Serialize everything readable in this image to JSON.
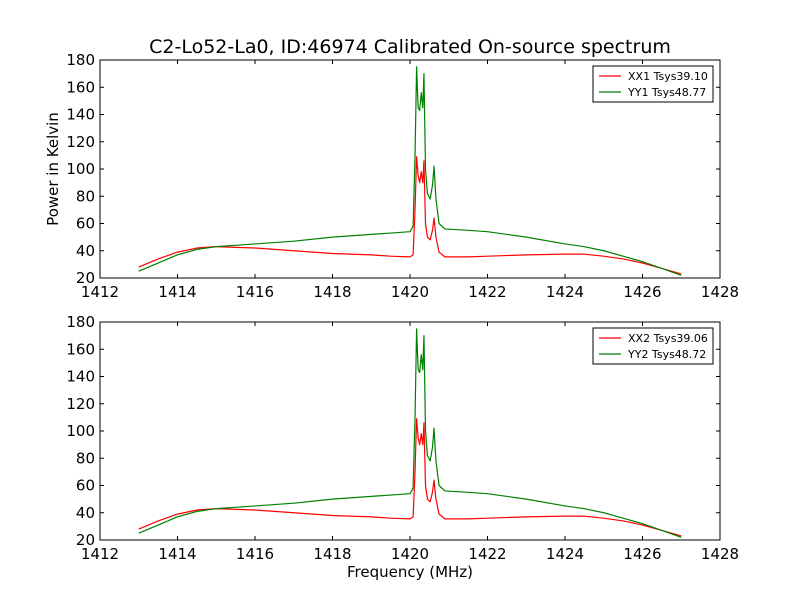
{
  "figure_title": "C2-Lo52-La0, ID:46974 Calibrated On-source spectrum",
  "chart_data": [
    {
      "type": "line",
      "title": "C2-Lo52-La0, ID:46974 Calibrated On-source spectrum",
      "xlabel": "",
      "ylabel": "Power in Kelvin",
      "xlim": [
        1412,
        1428
      ],
      "ylim": [
        20,
        180
      ],
      "xticks": [
        1412,
        1414,
        1416,
        1418,
        1420,
        1422,
        1424,
        1426,
        1428
      ],
      "yticks": [
        20,
        40,
        60,
        80,
        100,
        120,
        140,
        160,
        180
      ],
      "legend_position": "top-right",
      "grid": false,
      "series": [
        {
          "name": "XX1 Tsys39.10",
          "color": "#ff0000",
          "x": [
            1413.0,
            1413.5,
            1414.0,
            1414.5,
            1415.0,
            1415.5,
            1416.0,
            1417.0,
            1418.0,
            1419.0,
            1419.5,
            1420.0,
            1420.08,
            1420.13,
            1420.17,
            1420.21,
            1420.25,
            1420.29,
            1420.33,
            1420.36,
            1420.4,
            1420.45,
            1420.52,
            1420.58,
            1420.62,
            1420.67,
            1420.75,
            1420.9,
            1421.5,
            1422.0,
            1423.0,
            1424.0,
            1424.5,
            1425.0,
            1425.5,
            1426.0,
            1426.5,
            1427.0
          ],
          "y": [
            28,
            34,
            39,
            42,
            43,
            42.5,
            42,
            40,
            38,
            37,
            36,
            35.5,
            37,
            70,
            109,
            95,
            90,
            98,
            90,
            106,
            60,
            50,
            48,
            55,
            64,
            50,
            39,
            35.5,
            35.5,
            36,
            37,
            37.5,
            37.5,
            36,
            34,
            31,
            27,
            23
          ]
        },
        {
          "name": "YY1 Tsys48.77",
          "color": "#008000",
          "x": [
            1413.0,
            1413.5,
            1414.0,
            1414.5,
            1415.0,
            1415.5,
            1416.0,
            1417.0,
            1418.0,
            1419.0,
            1419.5,
            1420.0,
            1420.08,
            1420.13,
            1420.17,
            1420.21,
            1420.25,
            1420.29,
            1420.33,
            1420.36,
            1420.4,
            1420.45,
            1420.52,
            1420.58,
            1420.62,
            1420.67,
            1420.75,
            1420.9,
            1421.5,
            1422.0,
            1423.0,
            1424.0,
            1424.5,
            1425.0,
            1425.5,
            1426.0,
            1426.5,
            1427.0
          ],
          "y": [
            25,
            31,
            37,
            41,
            43,
            44,
            45,
            47,
            50,
            52,
            53,
            54,
            58,
            110,
            175,
            145,
            143,
            156,
            145,
            170,
            100,
            82,
            78,
            88,
            102,
            78,
            60,
            56,
            55,
            54,
            50,
            45,
            43,
            40,
            36,
            32,
            27,
            22
          ]
        }
      ]
    },
    {
      "type": "line",
      "title": "",
      "xlabel": "Frequency (MHz)",
      "ylabel": "",
      "xlim": [
        1412,
        1428
      ],
      "ylim": [
        20,
        180
      ],
      "xticks": [
        1412,
        1414,
        1416,
        1418,
        1420,
        1422,
        1424,
        1426,
        1428
      ],
      "yticks": [
        20,
        40,
        60,
        80,
        100,
        120,
        140,
        160,
        180
      ],
      "legend_position": "top-right",
      "grid": false,
      "series": [
        {
          "name": "XX2 Tsys39.06",
          "color": "#ff0000",
          "x": [
            1413.0,
            1413.5,
            1414.0,
            1414.5,
            1415.0,
            1415.5,
            1416.0,
            1417.0,
            1418.0,
            1419.0,
            1419.5,
            1420.0,
            1420.08,
            1420.13,
            1420.17,
            1420.21,
            1420.25,
            1420.29,
            1420.33,
            1420.36,
            1420.4,
            1420.45,
            1420.52,
            1420.58,
            1420.62,
            1420.67,
            1420.75,
            1420.9,
            1421.5,
            1422.0,
            1423.0,
            1424.0,
            1424.5,
            1425.0,
            1425.5,
            1426.0,
            1426.5,
            1427.0
          ],
          "y": [
            28,
            34,
            39,
            42,
            43,
            42.5,
            42,
            40,
            38,
            37,
            36,
            35.5,
            37,
            70,
            109,
            95,
            90,
            98,
            90,
            106,
            60,
            50,
            48,
            55,
            64,
            50,
            39,
            35.5,
            35.5,
            36,
            37,
            37.5,
            37.5,
            36,
            34,
            31,
            27,
            23
          ]
        },
        {
          "name": "YY2 Tsys48.72",
          "color": "#008000",
          "x": [
            1413.0,
            1413.5,
            1414.0,
            1414.5,
            1415.0,
            1415.5,
            1416.0,
            1417.0,
            1418.0,
            1419.0,
            1419.5,
            1420.0,
            1420.08,
            1420.13,
            1420.17,
            1420.21,
            1420.25,
            1420.29,
            1420.33,
            1420.36,
            1420.4,
            1420.45,
            1420.52,
            1420.58,
            1420.62,
            1420.67,
            1420.75,
            1420.9,
            1421.5,
            1422.0,
            1423.0,
            1424.0,
            1424.5,
            1425.0,
            1425.5,
            1426.0,
            1426.5,
            1427.0
          ],
          "y": [
            25,
            31,
            37,
            41,
            43,
            44,
            45,
            47,
            50,
            52,
            53,
            54,
            58,
            110,
            175,
            145,
            143,
            156,
            145,
            170,
            100,
            82,
            78,
            88,
            102,
            78,
            60,
            56,
            55,
            54,
            50,
            45,
            43,
            40,
            36,
            32,
            27,
            22
          ]
        }
      ]
    }
  ]
}
